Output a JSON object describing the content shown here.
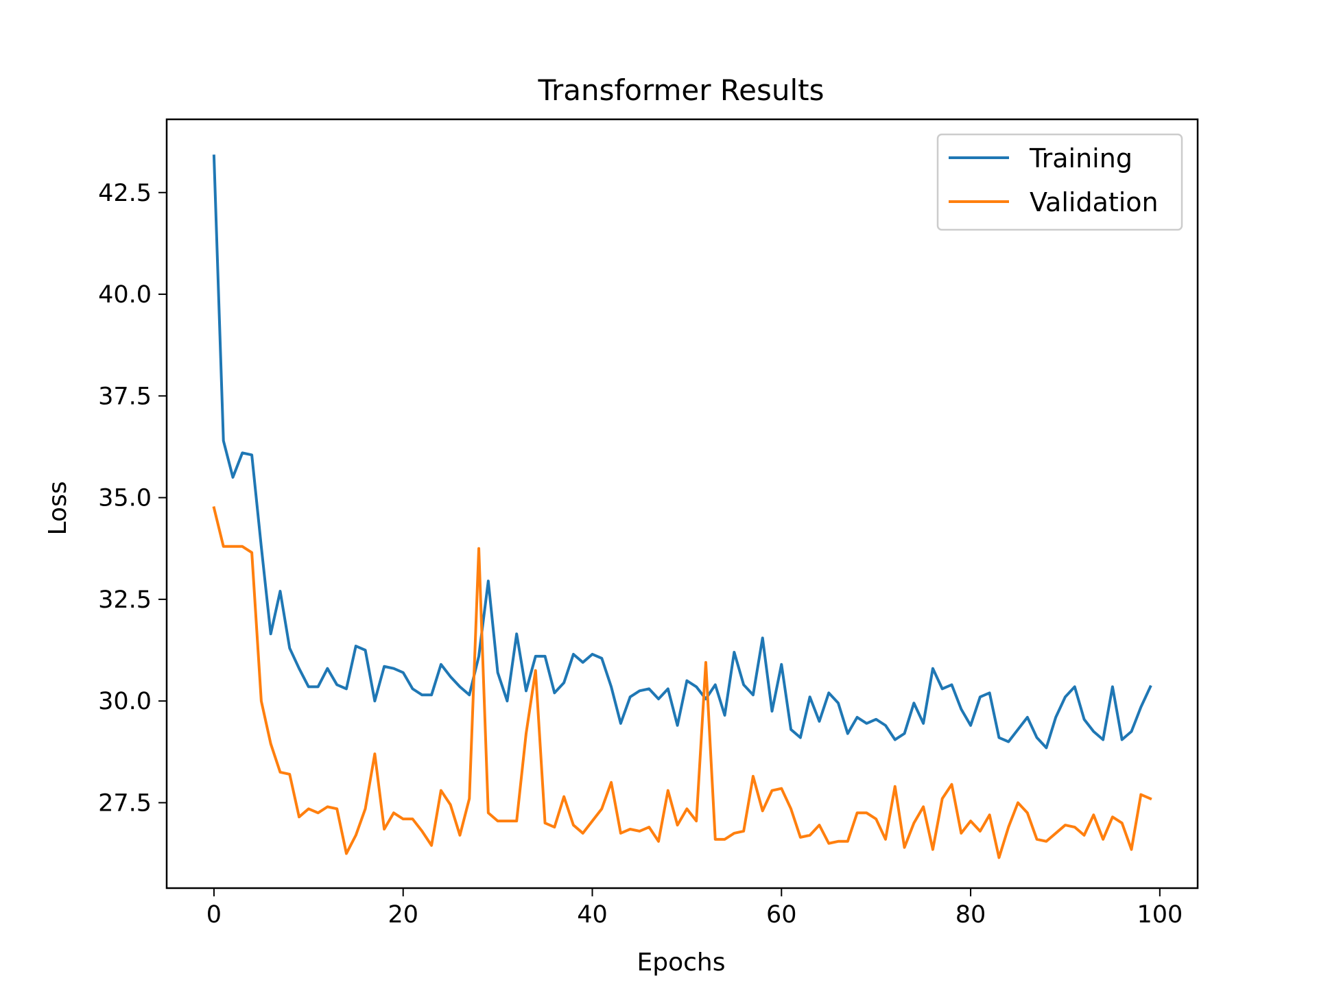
{
  "chart_data": {
    "type": "line",
    "title": "Transformer Results",
    "xlabel": "Epochs",
    "ylabel": "Loss",
    "xlim": [
      -5,
      104
    ],
    "ylim": [
      25.4,
      44.3
    ],
    "xticks": [
      0,
      20,
      40,
      60,
      80,
      100
    ],
    "yticks": [
      27.5,
      30.0,
      32.5,
      35.0,
      37.5,
      40.0,
      42.5
    ],
    "xtick_labels": [
      "0",
      "20",
      "40",
      "60",
      "80",
      "100"
    ],
    "ytick_labels": [
      "27.5",
      "30.0",
      "32.5",
      "35.0",
      "37.5",
      "40.0",
      "42.5"
    ],
    "grid": false,
    "legend_position": "top-right",
    "series": [
      {
        "name": "Training",
        "color": "#1f77b4",
        "values": [
          43.4,
          36.4,
          35.5,
          36.1,
          36.05,
          33.8,
          31.65,
          32.7,
          31.3,
          30.8,
          30.35,
          30.35,
          30.8,
          30.4,
          30.3,
          31.35,
          31.25,
          30.0,
          30.85,
          30.8,
          30.7,
          30.3,
          30.15,
          30.15,
          30.9,
          30.6,
          30.35,
          30.15,
          31.1,
          32.95,
          30.7,
          30.0,
          31.65,
          30.25,
          31.1,
          31.1,
          30.2,
          30.45,
          31.15,
          30.95,
          31.15,
          31.05,
          30.35,
          29.45,
          30.1,
          30.25,
          30.3,
          30.05,
          30.3,
          29.4,
          30.5,
          30.35,
          30.05,
          30.4,
          29.65,
          31.2,
          30.4,
          30.15,
          31.55,
          29.75,
          30.9,
          29.3,
          29.1,
          30.1,
          29.5,
          30.2,
          29.95,
          29.2,
          29.6,
          29.45,
          29.55,
          29.4,
          29.05,
          29.2,
          29.95,
          29.45,
          30.8,
          30.3,
          30.4,
          29.8,
          29.4,
          30.1,
          30.2,
          29.1,
          29.0,
          29.3,
          29.6,
          29.1,
          28.85,
          29.6,
          30.1,
          30.35,
          29.55,
          29.25,
          29.05,
          30.35,
          29.05,
          29.25,
          29.85,
          30.35
        ]
      },
      {
        "name": "Validation",
        "color": "#ff7f0e",
        "values": [
          34.75,
          33.8,
          33.8,
          33.8,
          33.65,
          30.0,
          28.95,
          28.25,
          28.2,
          27.15,
          27.35,
          27.25,
          27.4,
          27.35,
          26.25,
          26.7,
          27.35,
          28.7,
          26.85,
          27.25,
          27.1,
          27.1,
          26.8,
          26.45,
          27.8,
          27.45,
          26.7,
          27.6,
          33.75,
          27.25,
          27.05,
          27.05,
          27.05,
          29.2,
          30.75,
          27.0,
          26.9,
          27.65,
          26.95,
          26.75,
          27.05,
          27.35,
          28.0,
          26.75,
          26.85,
          26.8,
          26.9,
          26.55,
          27.8,
          26.95,
          27.35,
          27.05,
          30.95,
          26.6,
          26.6,
          26.75,
          26.8,
          28.15,
          27.3,
          27.8,
          27.85,
          27.35,
          26.65,
          26.7,
          26.95,
          26.5,
          26.55,
          26.55,
          27.25,
          27.25,
          27.1,
          26.6,
          27.9,
          26.4,
          27.0,
          27.4,
          26.35,
          27.6,
          27.95,
          26.75,
          27.05,
          26.8,
          27.2,
          26.15,
          26.9,
          27.5,
          27.25,
          26.6,
          26.55,
          26.75,
          26.95,
          26.9,
          26.7,
          27.2,
          26.6,
          27.15,
          27.0,
          26.35,
          27.7,
          27.6
        ]
      }
    ]
  }
}
